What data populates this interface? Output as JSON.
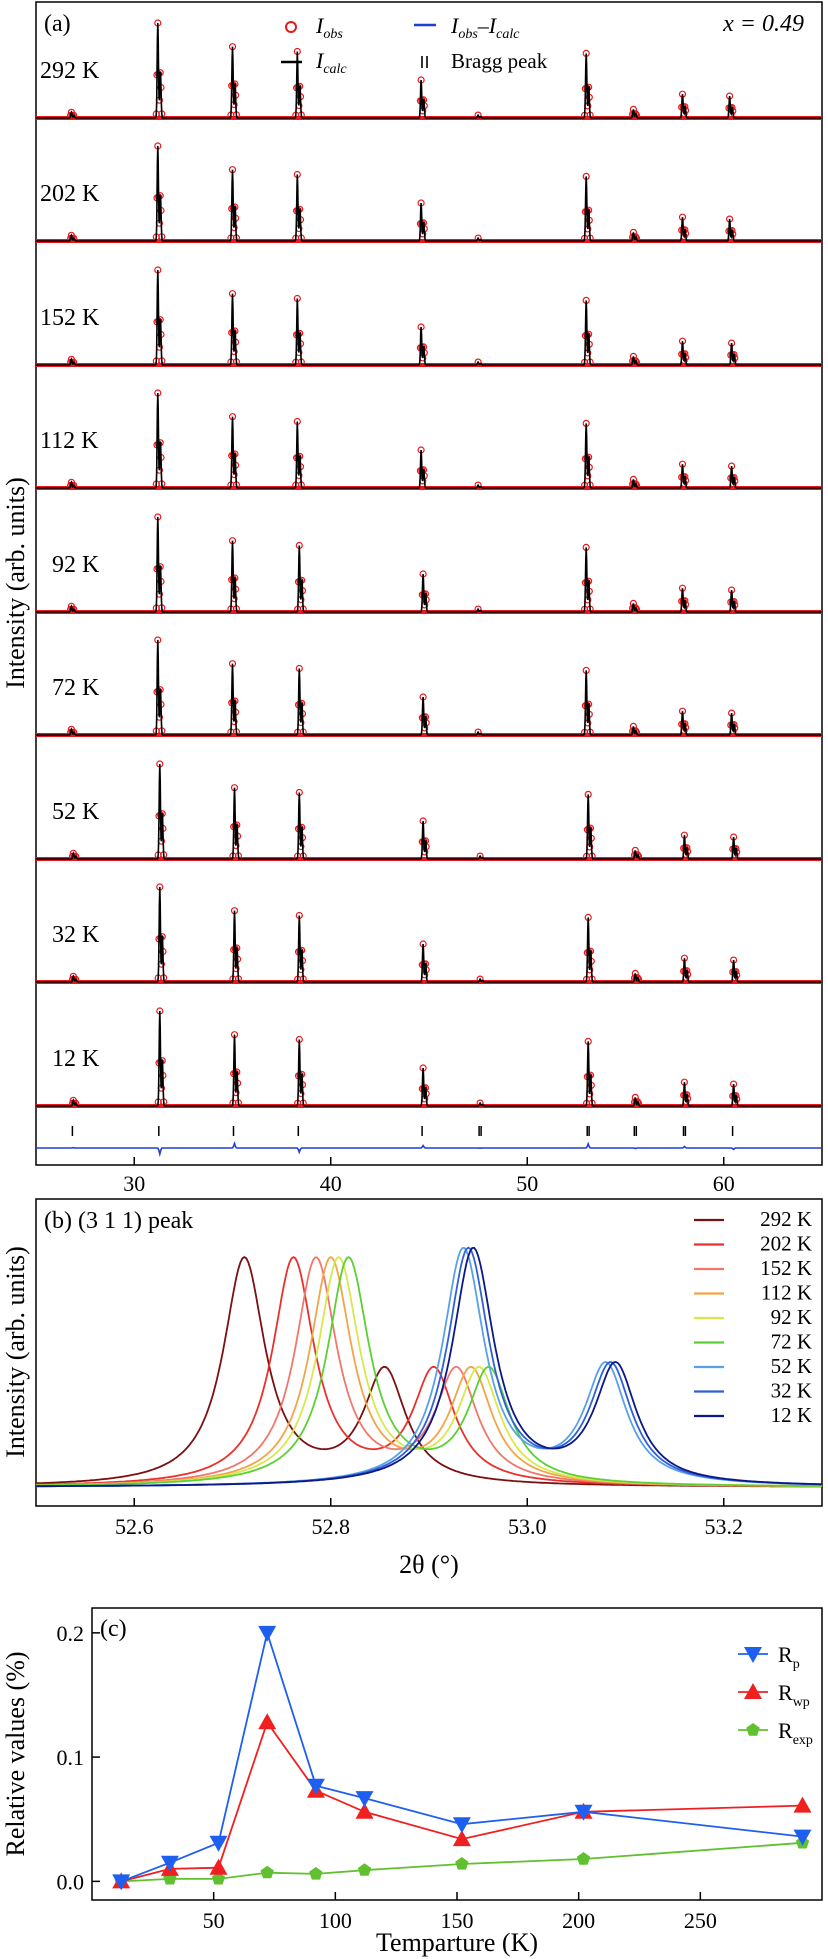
{
  "panel_a": {
    "label": "(a)",
    "composition": "x = 0.49",
    "ylabel": "Intensity (arb. units)",
    "legend": {
      "obs": "I",
      "obs_sub": "obs",
      "calc": "I",
      "calc_sub": "calc",
      "diff_a": "I",
      "diff_a_sub": "obs",
      "diff_dash": "–",
      "diff_b": "I",
      "diff_b_sub": "calc",
      "bragg": "Bragg peak"
    },
    "colors": {
      "obs": "#e8191c",
      "calc": "#000000",
      "diff": "#1f3fd8",
      "bragg": "#000000"
    },
    "temperatures": [
      "292 K",
      "202 K",
      "152 K",
      "112 K",
      "92 K",
      "72 K",
      "52 K",
      "32 K",
      "12 K"
    ]
  },
  "panel_b": {
    "label": "(b) (3 1 1) peak",
    "ylabel": "Intensity (arb. units)",
    "xlabel": "2θ (°)"
  },
  "panel_c": {
    "label": "(c)",
    "ylabel": "Relative values (%)",
    "xlabel": "Temparture (K)",
    "series_labels": [
      {
        "main": "R",
        "sub": "p"
      },
      {
        "main": "R",
        "sub": "wp"
      },
      {
        "main": "R",
        "sub": "exp"
      }
    ]
  },
  "chart_data": [
    {
      "type": "line",
      "panel": "a",
      "xlim": [
        25,
        65
      ],
      "x_ticks": [
        30,
        40,
        50,
        60
      ],
      "series": [
        {
          "name": "292 K",
          "peaks": [
            26.8,
            31.2,
            35.0,
            38.3,
            44.6,
            47.5,
            53.0,
            55.4,
            57.9,
            60.3
          ]
        },
        {
          "name": "202 K",
          "peaks": [
            26.8,
            31.2,
            35.0,
            38.3,
            44.6,
            47.5,
            53.0,
            55.4,
            57.9,
            60.3
          ]
        },
        {
          "name": "152 K",
          "peaks": [
            26.8,
            31.2,
            35.0,
            38.3,
            44.6,
            47.5,
            53.0,
            55.4,
            57.9,
            60.4
          ]
        },
        {
          "name": "112 K",
          "peaks": [
            26.8,
            31.2,
            35.0,
            38.3,
            44.6,
            47.5,
            53.0,
            55.4,
            57.9,
            60.4
          ]
        },
        {
          "name": "92 K",
          "peaks": [
            26.8,
            31.2,
            35.0,
            38.4,
            44.7,
            47.5,
            53.0,
            55.4,
            57.9,
            60.4
          ]
        },
        {
          "name": "72 K",
          "peaks": [
            26.8,
            31.2,
            35.0,
            38.4,
            44.7,
            47.5,
            53.0,
            55.4,
            57.9,
            60.4
          ]
        },
        {
          "name": "52 K",
          "peaks": [
            26.9,
            31.3,
            35.1,
            38.4,
            44.7,
            47.6,
            53.1,
            55.5,
            58.0,
            60.5
          ]
        },
        {
          "name": "32 K",
          "peaks": [
            26.9,
            31.3,
            35.1,
            38.4,
            44.7,
            47.6,
            53.1,
            55.5,
            58.0,
            60.5
          ]
        },
        {
          "name": "12 K",
          "peaks": [
            26.9,
            31.3,
            35.1,
            38.4,
            44.7,
            47.6,
            53.1,
            55.5,
            58.0,
            60.5
          ]
        }
      ],
      "relative_heights": [
        0.06,
        1.0,
        0.75,
        0.7,
        0.4,
        0.03,
        0.68,
        0.09,
        0.25,
        0.23
      ],
      "bragg_peaks": [
        26.85,
        31.25,
        35.05,
        38.35,
        44.65,
        47.55,
        47.65,
        53.05,
        53.15,
        55.45,
        55.55,
        57.95,
        58.05,
        60.45
      ]
    },
    {
      "type": "line",
      "panel": "b",
      "xlim": [
        52.5,
        53.3
      ],
      "x_ticks": [
        52.6,
        52.8,
        53.0,
        53.2
      ],
      "series": [
        {
          "name": "292 K",
          "color": "#7a1010",
          "peak1": 52.712,
          "peak2": 52.855
        },
        {
          "name": "202 K",
          "color": "#e8312c",
          "peak1": 52.762,
          "peak2": 52.905
        },
        {
          "name": "152 K",
          "color": "#f2766a",
          "peak1": 52.785,
          "peak2": 52.928
        },
        {
          "name": "112 K",
          "color": "#f4a448",
          "peak1": 52.8,
          "peak2": 52.943
        },
        {
          "name": "92 K",
          "color": "#d8e84a",
          "peak1": 52.808,
          "peak2": 52.951
        },
        {
          "name": "72 K",
          "color": "#5ad032",
          "peak1": 52.818,
          "peak2": 52.961
        },
        {
          "name": "52 K",
          "color": "#58a0e8",
          "peak1": 52.935,
          "peak2": 53.08
        },
        {
          "name": "32 K",
          "color": "#3060d8",
          "peak1": 52.94,
          "peak2": 53.085
        },
        {
          "name": "12 K",
          "color": "#0a1888",
          "peak1": 52.945,
          "peak2": 53.09
        }
      ]
    },
    {
      "type": "line",
      "panel": "c",
      "xlim": [
        0,
        300
      ],
      "ylim": [
        -0.015,
        0.22
      ],
      "x_ticks": [
        50,
        100,
        150,
        200,
        250
      ],
      "y_ticks": [
        0.0,
        0.1,
        0.2
      ],
      "x": [
        12,
        32,
        52,
        72,
        92,
        112,
        152,
        202,
        292
      ],
      "series": [
        {
          "name": "Rp",
          "color": "#1f5ff0",
          "marker": "triangle-down",
          "values": [
            0.0,
            0.015,
            0.031,
            0.2,
            0.077,
            0.067,
            0.046,
            0.056,
            0.036
          ]
        },
        {
          "name": "Rwp",
          "color": "#f02020",
          "marker": "triangle-up",
          "values": [
            0.0,
            0.01,
            0.011,
            0.128,
            0.073,
            0.056,
            0.034,
            0.056,
            0.061
          ]
        },
        {
          "name": "Rexp",
          "color": "#60c030",
          "marker": "pentagon",
          "values": [
            0.0,
            0.002,
            0.002,
            0.007,
            0.006,
            0.009,
            0.014,
            0.018,
            0.031
          ]
        }
      ],
      "legend_position": "top-right"
    }
  ]
}
